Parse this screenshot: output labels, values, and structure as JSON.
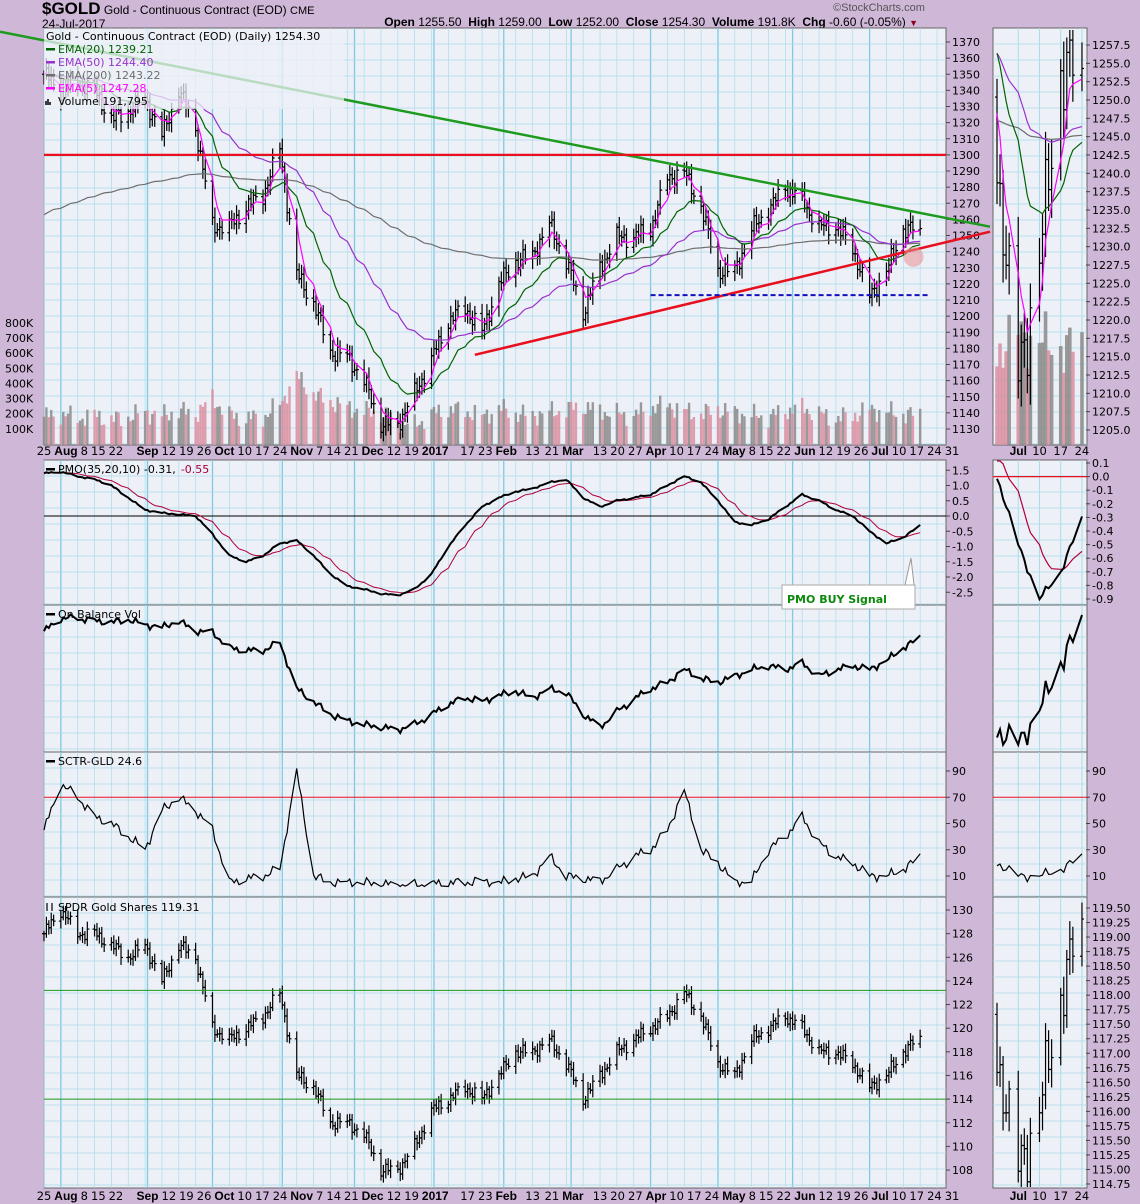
{
  "header": {
    "symbol": "$GOLD",
    "name": "Gold - Continuous Contract (EOD)",
    "exchange": "CME",
    "date": "24-Jul-2017",
    "copyright": "©StockCharts.com",
    "open_label": "Open",
    "open": "1255.50",
    "high_label": "High",
    "high": "1259.00",
    "low_label": "Low",
    "low": "1252.00",
    "close_label": "Close",
    "close": "1254.30",
    "volume_label": "Volume",
    "volume": "191.8K",
    "chg_label": "Chg",
    "chg": "-0.60 (-0.05%)",
    "chg_direction": "down"
  },
  "chart_data": {
    "type": "ohlc",
    "week_starts": "2016-07-25",
    "last_date": "2017-07-24",
    "colors": {
      "ema20": "#006400",
      "ema50": "#9932cc",
      "ema200": "#6e6e6e",
      "ema5": "#ff00ff",
      "trend_green": "#1e9a1e",
      "trend_red": "#e8101e",
      "support_blue": "#1010c0",
      "signal": "#b0003a",
      "volume_up": "#8a8a8a",
      "volume_down": "#d98ea0",
      "grid": "#a9dcea",
      "plot_bg": "#eef0f8"
    },
    "price_panel": {
      "legend_title": "Gold - Continuous Contract (EOD) (Daily) 1254.30",
      "legend": [
        {
          "label": "EMA(20) 1239.21",
          "key": "ema20"
        },
        {
          "label": "EMA(50) 1244.40",
          "key": "ema50"
        },
        {
          "label": "EMA(200) 1243.22",
          "key": "ema200"
        },
        {
          "label": "EMA(5) 1247.28",
          "key": "ema5"
        }
      ],
      "volume_legend": "Volume 191,795",
      "weekly_close": [
        1350,
        1340,
        1345,
        1340,
        1322,
        1327,
        1335,
        1312,
        1340,
        1317,
        1256,
        1255,
        1268,
        1275,
        1304,
        1226,
        1208,
        1178,
        1175,
        1160,
        1133,
        1133,
        1152,
        1173,
        1197,
        1205,
        1190,
        1220,
        1234,
        1238,
        1257,
        1234,
        1202,
        1230,
        1249,
        1249,
        1254,
        1286,
        1289,
        1268,
        1228,
        1228,
        1254,
        1266,
        1280,
        1272,
        1255,
        1256,
        1242,
        1212,
        1228,
        1254,
        1254.3
      ],
      "weekly_volume_k": [
        180,
        200,
        170,
        190,
        160,
        180,
        210,
        190,
        220,
        200,
        300,
        190,
        170,
        180,
        260,
        450,
        330,
        280,
        240,
        220,
        200,
        150,
        120,
        200,
        230,
        220,
        180,
        240,
        200,
        190,
        210,
        230,
        250,
        220,
        200,
        190,
        240,
        260,
        220,
        200,
        230,
        210,
        190,
        180,
        220,
        240,
        200,
        170,
        190,
        230,
        210,
        200,
        192
      ],
      "ylim": [
        1125,
        1375
      ],
      "ticks": [
        "1370",
        "1360",
        "1350",
        "1340",
        "1330",
        "1320",
        "1310",
        "1300",
        "1290",
        "1280",
        "1270",
        "1260",
        "1250",
        "1240",
        "1230",
        "1220",
        "1210",
        "1200",
        "1190",
        "1180",
        "1170",
        "1160",
        "1150",
        "1140",
        "1130"
      ],
      "volume_ticks": [
        "800K",
        "700K",
        "600K",
        "500K",
        "400K",
        "300K",
        "200K",
        "100K"
      ],
      "side_ticks": [
        "1257.5",
        "1255.0",
        "1252.5",
        "1250.0",
        "1247.5",
        "1245.0",
        "1242.5",
        "1240.0",
        "1237.5",
        "1235.0",
        "1232.5",
        "1230.0",
        "1227.5",
        "1225.0",
        "1222.5",
        "1220.0",
        "1217.5",
        "1215.0",
        "1212.5",
        "1210.0",
        "1207.5",
        "1205.0"
      ],
      "annotations": {
        "downtrend": [
          [
            "2016-07-25",
            1371
          ],
          [
            "2017-07-24",
            1264
          ]
        ],
        "resistance": 1300,
        "uptrend": [
          [
            "2017-01-20",
            1176
          ],
          [
            "2017-07-24",
            1242
          ]
        ],
        "support": [
          [
            "2017-04-03",
            1213
          ],
          [
            "2017-07-24",
            1213
          ]
        ],
        "highlight": [
          "2017-07-20",
          1238
        ]
      }
    },
    "date_axis": [
      {
        "label": "25",
        "date": "2016-07-25"
      },
      {
        "label": "Aug",
        "date": "2016-08-01",
        "month": true
      },
      {
        "label": "8",
        "date": "2016-08-08"
      },
      {
        "label": "15",
        "date": "2016-08-15"
      },
      {
        "label": "22",
        "date": "2016-08-22"
      },
      {
        "label": "Sep",
        "date": "2016-09-06",
        "month": true
      },
      {
        "label": "12",
        "date": "2016-09-12"
      },
      {
        "label": "19",
        "date": "2016-09-19"
      },
      {
        "label": "26",
        "date": "2016-09-26"
      },
      {
        "label": "Oct",
        "date": "2016-10-03",
        "month": true
      },
      {
        "label": "10",
        "date": "2016-10-10"
      },
      {
        "label": "17",
        "date": "2016-10-17"
      },
      {
        "label": "24",
        "date": "2016-10-24"
      },
      {
        "label": "Nov",
        "date": "2016-11-01",
        "month": true
      },
      {
        "label": "7",
        "date": "2016-11-07"
      },
      {
        "label": "14",
        "date": "2016-11-14"
      },
      {
        "label": "21",
        "date": "2016-11-21"
      },
      {
        "label": "Dec",
        "date": "2016-12-01",
        "month": true
      },
      {
        "label": "12",
        "date": "2016-12-12"
      },
      {
        "label": "19",
        "date": "2016-12-19"
      },
      {
        "label": "2017",
        "date": "2017-01-03",
        "month": true
      },
      {
        "label": "17",
        "date": "2017-01-17"
      },
      {
        "label": "23",
        "date": "2017-01-23"
      },
      {
        "label": "Feb",
        "date": "2017-02-01",
        "month": true
      },
      {
        "label": "13",
        "date": "2017-02-13"
      },
      {
        "label": "21",
        "date": "2017-02-21"
      },
      {
        "label": "Mar",
        "date": "2017-03-01",
        "month": true
      },
      {
        "label": "13",
        "date": "2017-03-13"
      },
      {
        "label": "20",
        "date": "2017-03-20"
      },
      {
        "label": "27",
        "date": "2017-03-27"
      },
      {
        "label": "Apr",
        "date": "2017-04-03",
        "month": true
      },
      {
        "label": "10",
        "date": "2017-04-10"
      },
      {
        "label": "17",
        "date": "2017-04-17"
      },
      {
        "label": "24",
        "date": "2017-04-24"
      },
      {
        "label": "May",
        "date": "2017-05-01",
        "month": true
      },
      {
        "label": "8",
        "date": "2017-05-08"
      },
      {
        "label": "15",
        "date": "2017-05-15"
      },
      {
        "label": "22",
        "date": "2017-05-22"
      },
      {
        "label": "Jun",
        "date": "2017-06-01",
        "month": true
      },
      {
        "label": "12",
        "date": "2017-06-12"
      },
      {
        "label": "19",
        "date": "2017-06-19"
      },
      {
        "label": "26",
        "date": "2017-06-26"
      },
      {
        "label": "Jul",
        "date": "2017-07-03",
        "month": true
      },
      {
        "label": "10",
        "date": "2017-07-10"
      },
      {
        "label": "17",
        "date": "2017-07-17"
      },
      {
        "label": "24",
        "date": "2017-07-24"
      },
      {
        "label": "31",
        "date": "2017-07-31"
      }
    ],
    "side_date_axis": [
      {
        "label": "Jul",
        "date": "2017-07-03",
        "month": true
      },
      {
        "label": "10",
        "date": "2017-07-10"
      },
      {
        "label": "17",
        "date": "2017-07-17"
      },
      {
        "label": "24",
        "date": "2017-07-24"
      }
    ],
    "pmo_panel": {
      "legend_prefix": "PMO(35,20,10) -0.31,",
      "legend_signal": "-0.55",
      "weekly": [
        1.4,
        1.45,
        1.3,
        1.2,
        1.0,
        0.6,
        0.2,
        0.1,
        0.05,
        0.0,
        -0.6,
        -1.3,
        -1.5,
        -1.3,
        -0.9,
        -0.8,
        -1.3,
        -1.9,
        -2.3,
        -2.4,
        -2.55,
        -2.6,
        -2.4,
        -1.9,
        -1.0,
        -0.3,
        0.3,
        0.6,
        0.8,
        0.9,
        1.1,
        1.2,
        0.6,
        0.3,
        0.5,
        0.6,
        0.7,
        1.0,
        1.3,
        1.1,
        0.5,
        -0.2,
        -0.3,
        -0.1,
        0.3,
        0.7,
        0.5,
        0.2,
        0.0,
        -0.5,
        -0.9,
        -0.7,
        -0.31
      ],
      "ticks": [
        "1.5",
        "1.0",
        "0.5",
        "0.0",
        "-0.5",
        "-1.0",
        "-1.5",
        "-2.0",
        "-2.5"
      ],
      "side_ticks": [
        "0.1",
        "0.0",
        "-0.1",
        "-0.2",
        "-0.3",
        "-0.4",
        "-0.5",
        "-0.6",
        "-0.7",
        "-0.8",
        "-0.9"
      ],
      "callout": "PMO BUY Signal"
    },
    "obv_panel": {
      "legend": "On Balance Vol",
      "weekly_relative": [
        85,
        95,
        95,
        93,
        92,
        94,
        90,
        88,
        93,
        85,
        84,
        72,
        70,
        70,
        76,
        40,
        30,
        20,
        15,
        12,
        10,
        8,
        12,
        20,
        28,
        33,
        30,
        35,
        38,
        33,
        40,
        37,
        20,
        10,
        22,
        32,
        40,
        45,
        55,
        48,
        45,
        50,
        55,
        58,
        55,
        60,
        50,
        55,
        58,
        55,
        62,
        72,
        80
      ]
    },
    "sctr_panel": {
      "legend": "SCTR-GLD 24.6",
      "weekly": [
        45,
        80,
        70,
        55,
        50,
        40,
        30,
        60,
        70,
        60,
        45,
        5,
        8,
        10,
        15,
        90,
        10,
        5,
        5,
        5,
        4,
        3,
        3,
        4,
        5,
        5,
        6,
        5,
        8,
        10,
        25,
        10,
        8,
        6,
        15,
        25,
        30,
        45,
        75,
        30,
        20,
        5,
        6,
        30,
        40,
        55,
        35,
        25,
        20,
        10,
        10,
        15,
        24.6
      ],
      "reference": 70,
      "ticks": [
        "90",
        "70",
        "50",
        "30",
        "10"
      ]
    },
    "spdr_panel": {
      "legend": "SPDR Gold Shares 119.31",
      "weekly_close": [
        128,
        130,
        128,
        128,
        127,
        126,
        127,
        124,
        127,
        126,
        120,
        119,
        120,
        121,
        123,
        116,
        115,
        112,
        112,
        111,
        108,
        108,
        110,
        113,
        114,
        115,
        114,
        116,
        118,
        118,
        119,
        117,
        114,
        116,
        118,
        119,
        120,
        121,
        123,
        121,
        117,
        116,
        119,
        120,
        121,
        120,
        118,
        118,
        117,
        115,
        116,
        118,
        119.31
      ],
      "lines": [
        123.2,
        114
      ],
      "ticks": [
        "130",
        "128",
        "126",
        "124",
        "122",
        "120",
        "118",
        "116",
        "114",
        "112",
        "110",
        "108"
      ],
      "side_ticks": [
        "119.50",
        "119.25",
        "119.00",
        "118.75",
        "118.50",
        "118.25",
        "118.00",
        "117.75",
        "117.50",
        "117.25",
        "117.00",
        "116.75",
        "116.50",
        "116.25",
        "116.00",
        "115.75",
        "115.50",
        "115.25",
        "115.00",
        "114.75"
      ]
    }
  }
}
